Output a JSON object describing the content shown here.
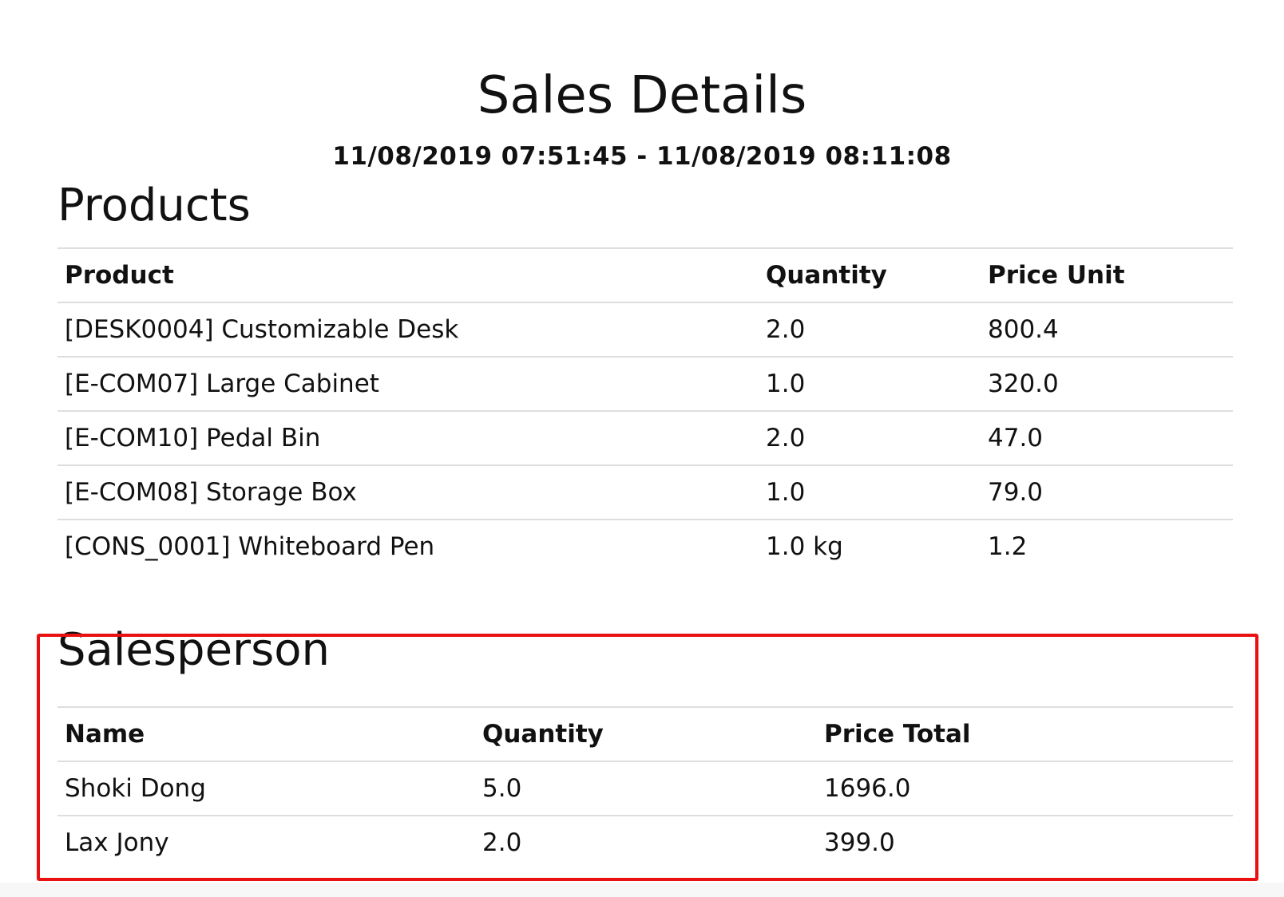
{
  "report": {
    "title": "Sales Details",
    "date_range": "11/08/2019 07:51:45 - 11/08/2019 08:11:08"
  },
  "products": {
    "heading": "Products",
    "columns": [
      "Product",
      "Quantity",
      "Price Unit"
    ],
    "rows": [
      {
        "product": "[DESK0004] Customizable Desk",
        "quantity": "2.0",
        "price_unit": "800.4"
      },
      {
        "product": "[E-COM07] Large Cabinet",
        "quantity": "1.0",
        "price_unit": "320.0"
      },
      {
        "product": "[E-COM10] Pedal Bin",
        "quantity": "2.0",
        "price_unit": "47.0"
      },
      {
        "product": "[E-COM08] Storage Box",
        "quantity": "1.0",
        "price_unit": "79.0"
      },
      {
        "product": "[CONS_0001] Whiteboard Pen",
        "quantity": "1.0 kg",
        "price_unit": "1.2"
      }
    ]
  },
  "salesperson": {
    "heading": "Salesperson",
    "columns": [
      "Name",
      "Quantity",
      "Price Total"
    ],
    "rows": [
      {
        "name": "Shoki Dong",
        "quantity": "5.0",
        "price_total": "1696.0"
      },
      {
        "name": "Lax Jony",
        "quantity": "2.0",
        "price_total": "399.0"
      }
    ]
  },
  "colors": {
    "highlight_border": "#e81010",
    "row_divider": "#dedede",
    "text": "#111111"
  }
}
